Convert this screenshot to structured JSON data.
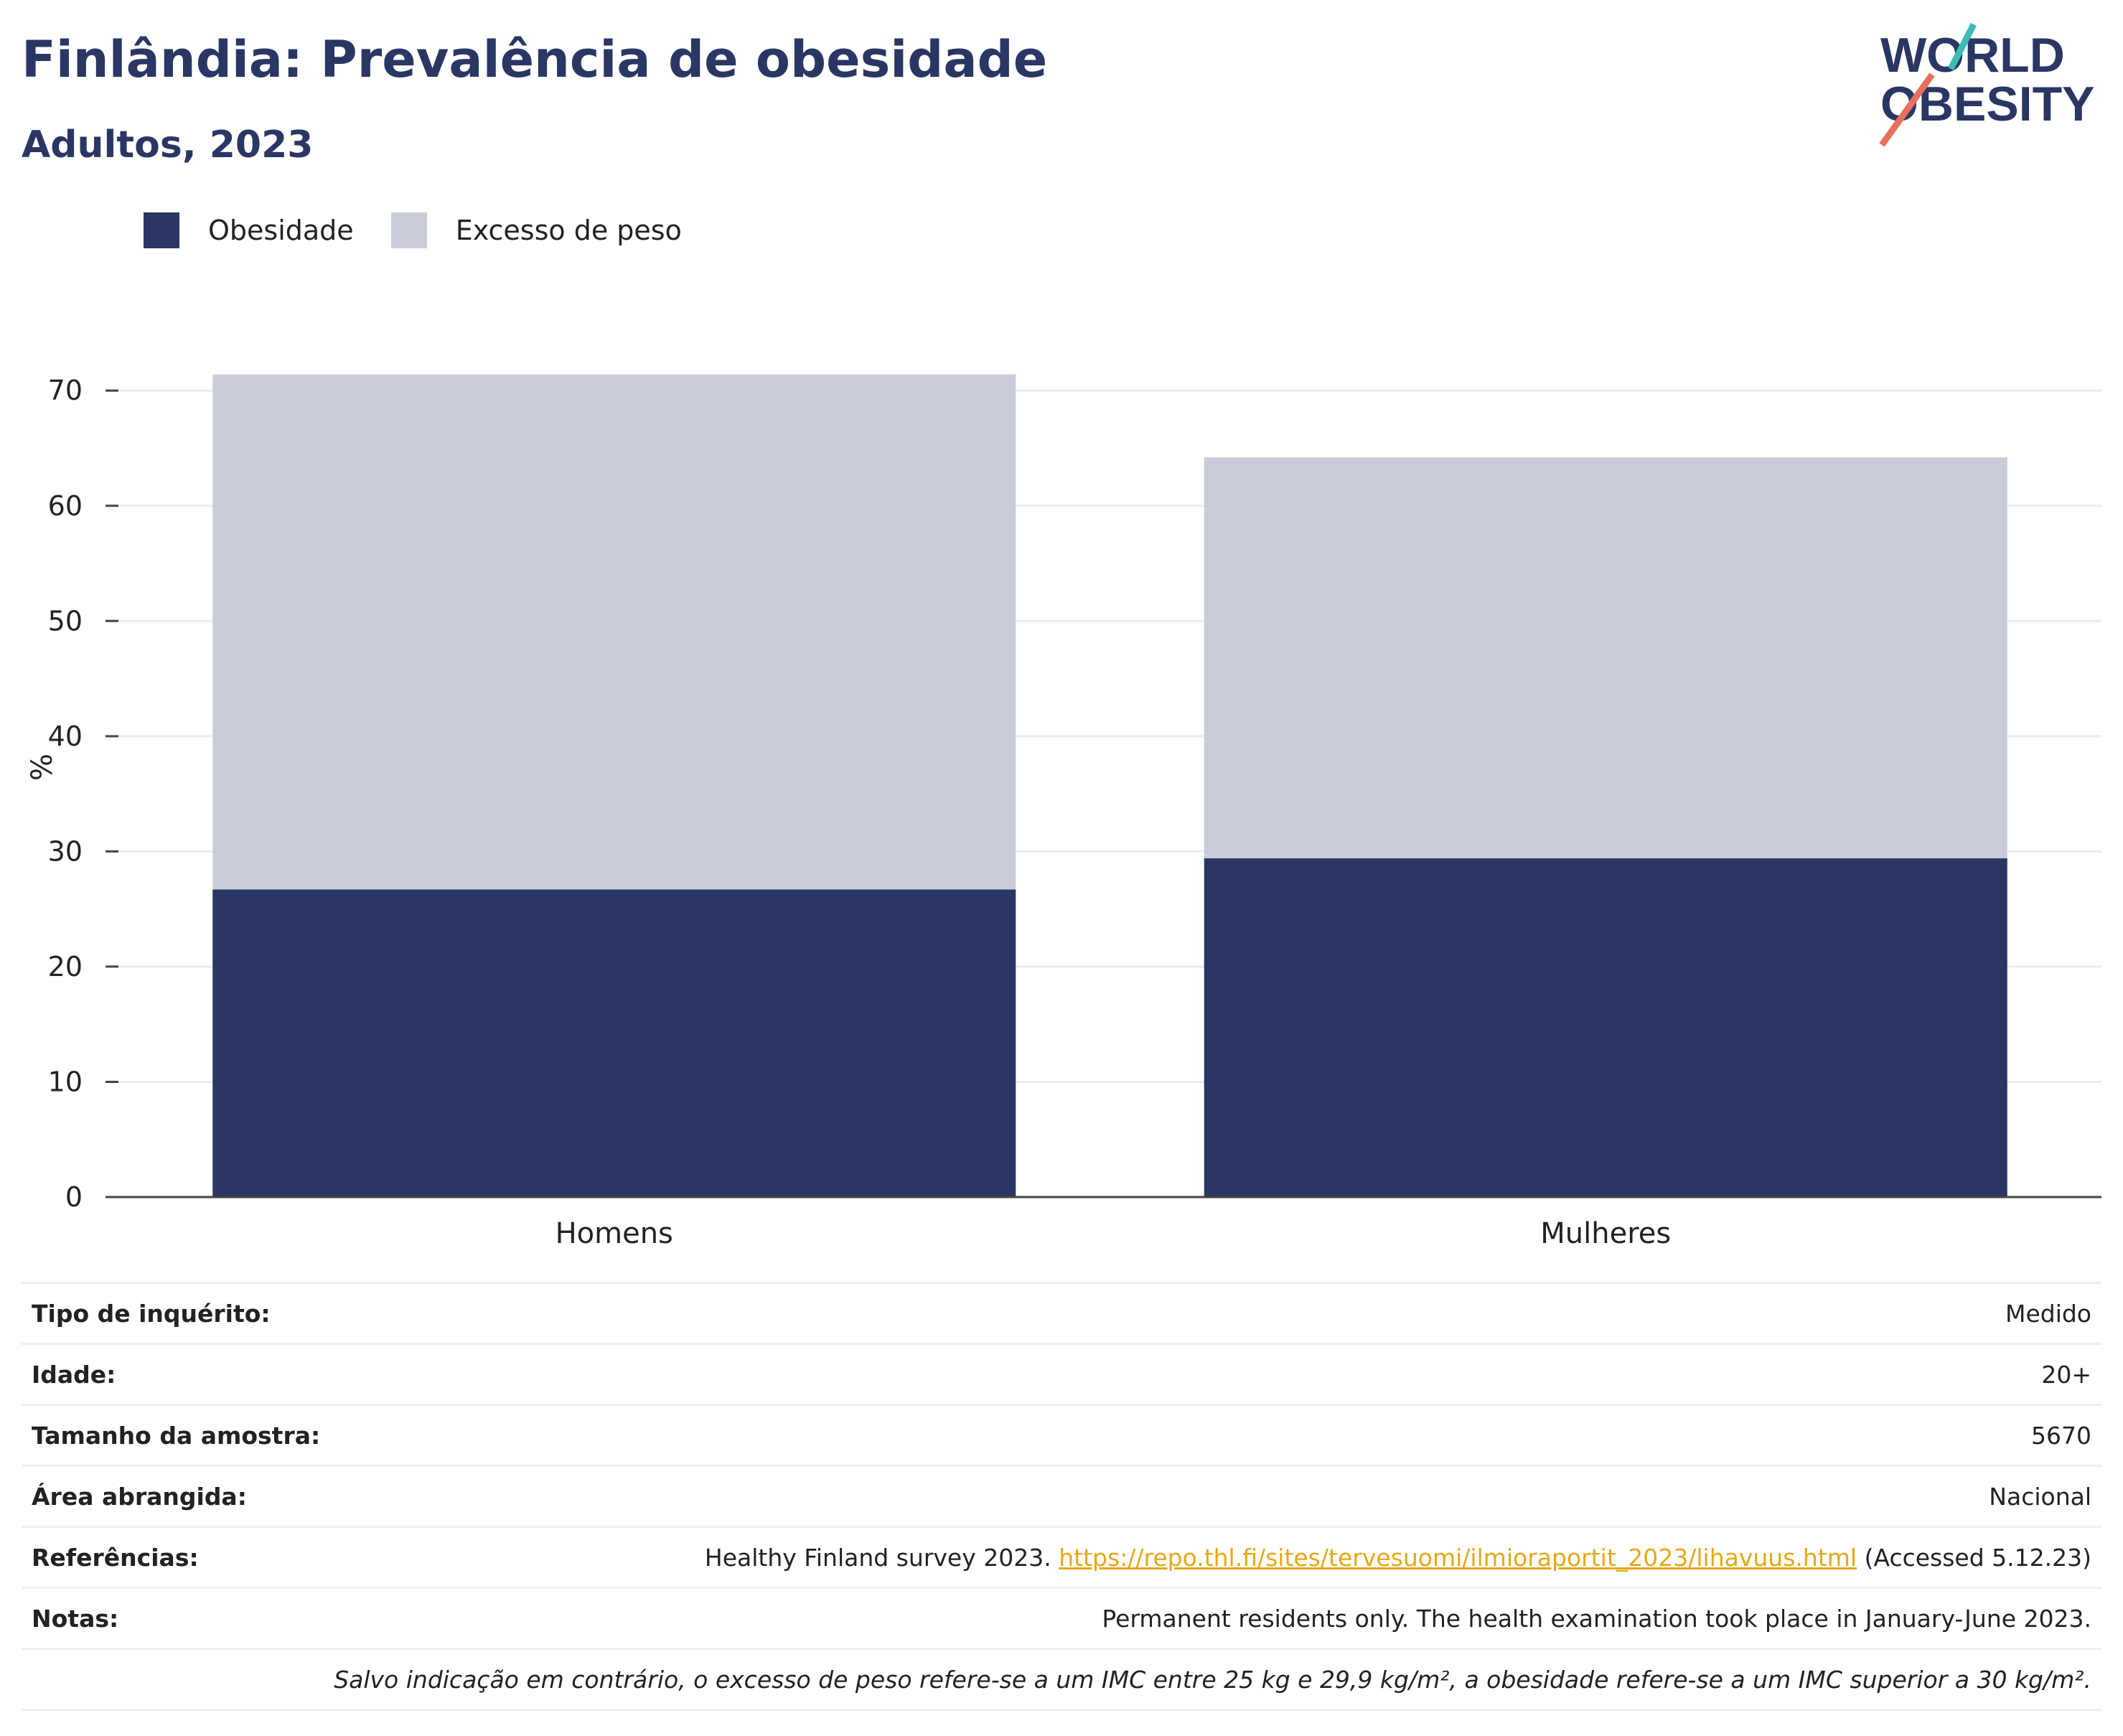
{
  "header": {
    "title": "Finlândia: Prevalência de obesidade",
    "subtitle": "Adultos, 2023",
    "logo_line1": "WORLD",
    "logo_line2": "OBESITY"
  },
  "legend": {
    "obesity_label": "Obesidade",
    "overweight_label": "Excesso de peso"
  },
  "colors": {
    "obesity": "#2a3663",
    "overweight": "#cacdd9",
    "link": "#e6a817",
    "logo_teal": "#3bbcb6",
    "logo_coral": "#e8705f"
  },
  "chart_data": {
    "type": "bar",
    "stacked": true,
    "categories": [
      "Homens",
      "Mulheres"
    ],
    "series": [
      {
        "name": "Obesidade",
        "values": [
          26.7,
          29.4
        ]
      },
      {
        "name": "Excesso de peso",
        "values": [
          44.7,
          34.8
        ]
      }
    ],
    "ylabel": "%",
    "ylim": [
      0,
      74
    ],
    "yticks": [
      0,
      10,
      20,
      30,
      40,
      50,
      60,
      70
    ],
    "grid": true,
    "legend_position": "top-left"
  },
  "info": {
    "survey_type_label": "Tipo de inquérito:",
    "survey_type_value": "Medido",
    "age_label": "Idade:",
    "age_value": "20+",
    "sample_label": "Tamanho da amostra:",
    "sample_value": "5670",
    "area_label": "Área abrangida:",
    "area_value": "Nacional",
    "refs_label": "Referências:",
    "refs_prefix": "Healthy Finland survey 2023.",
    "refs_link": "https://repo.thl.fi/sites/tervesuomi/ilmioraportit_2023/lihavuus.html",
    "refs_suffix": "(Accessed 5.12.23)",
    "notes_label": "Notas:",
    "notes_value": "Permanent residents only. The health examination took place in January-June 2023.",
    "footnote": "Salvo indicação em contrário, o excesso de peso refere-se a um IMC entre 25 kg e 29,9 kg/m², a obesidade refere-se a um IMC superior a 30 kg/m²."
  }
}
